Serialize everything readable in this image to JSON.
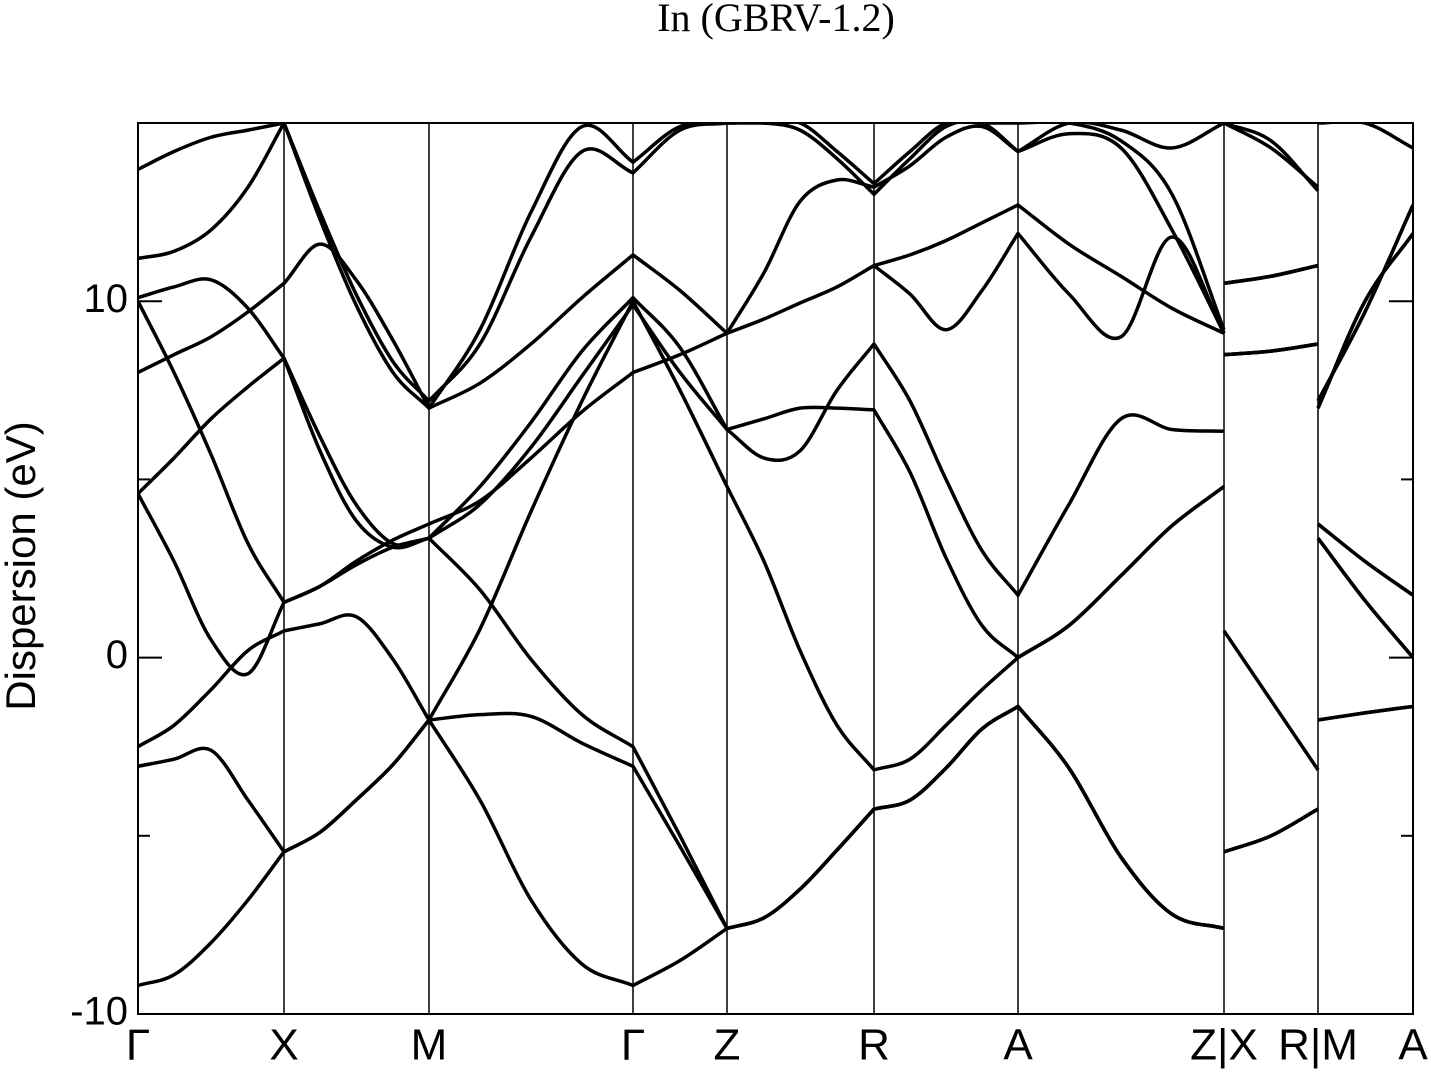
{
  "chart_data": {
    "type": "line",
    "title": "In (GBRV-1.2)",
    "ylabel": "Dispersion (eV)",
    "color": "#000000",
    "xlim": [
      0,
      1275
    ],
    "ylim": [
      -10,
      15
    ],
    "yticks": [
      -10,
      0,
      10
    ],
    "yminorticks": [
      -5,
      5
    ],
    "xticks": [
      {
        "value": 0,
        "label": "Γ"
      },
      {
        "value": 146,
        "label": "X"
      },
      {
        "value": 291,
        "label": "M"
      },
      {
        "value": 495,
        "label": "Γ"
      },
      {
        "value": 589,
        "label": "Z"
      },
      {
        "value": 736,
        "label": "R"
      },
      {
        "value": 880,
        "label": "A"
      },
      {
        "value": 1086,
        "label": "Z|X"
      },
      {
        "value": 1180,
        "label": "R|M"
      },
      {
        "value": 1275,
        "label": "A"
      }
    ],
    "x": [
      0,
      36,
      73,
      110,
      146,
      182,
      218,
      255,
      291,
      342,
      393,
      444,
      495,
      542,
      589,
      626,
      662,
      699,
      736,
      772,
      808,
      844,
      880,
      931,
      983,
      1034,
      1086,
      1086,
      1086,
      1133,
      1180,
      1180,
      1180,
      1227,
      1275
    ],
    "series": [
      {
        "values": [
          -9.2,
          -8.9,
          -8.0,
          -6.8,
          -5.45,
          -4.9,
          -4.0,
          -3.0,
          -1.75,
          -4.0,
          -6.8,
          -8.6,
          -9.2,
          -8.5,
          -7.6,
          -7.3,
          -6.5,
          -5.4,
          -4.25,
          -4.0,
          -3.1,
          -2.0,
          -1.37,
          -3.1,
          -5.6,
          -7.2,
          -7.6,
          null,
          -5.45,
          -5.0,
          -4.25,
          null,
          -1.75,
          -1.55,
          -1.37
        ]
      },
      {
        "values": [
          -3.05,
          -2.85,
          -2.6,
          -4.0,
          -5.45,
          -4.9,
          -4.0,
          -3.0,
          -1.75,
          -1.6,
          -1.65,
          -2.4,
          -3.05,
          -5.3,
          -7.6,
          -7.3,
          -6.5,
          -5.4,
          -4.25,
          -4.0,
          -3.1,
          -2.0,
          -1.37,
          -3.1,
          -5.6,
          -7.2,
          -7.6,
          null,
          -5.45,
          -5.0,
          -4.25,
          null,
          -1.75,
          -1.55,
          -1.37
        ]
      },
      {
        "values": [
          -2.5,
          -1.9,
          -0.9,
          0.2,
          0.75,
          0.95,
          1.15,
          -0.05,
          -1.75,
          0.8,
          4.1,
          7.2,
          10.0,
          7.5,
          4.8,
          2.7,
          0.2,
          -1.9,
          -3.15,
          -2.85,
          -1.9,
          -0.9,
          0,
          0.9,
          2.3,
          3.7,
          4.8,
          null,
          0.75,
          -1.2,
          -3.15,
          null,
          3.35,
          1.6,
          0
        ]
      },
      {
        "values": [
          4.6,
          2.7,
          0.5,
          -0.45,
          1.55,
          2.0,
          2.7,
          3.3,
          3.75,
          4.4,
          5.6,
          6.9,
          8.0,
          8.5,
          9.1,
          9.5,
          9.95,
          10.4,
          11.0,
          11.3,
          11.7,
          12.2,
          12.7,
          11.6,
          10.7,
          9.8,
          9.1,
          null,
          10.5,
          10.7,
          11.0,
          null,
          7.2,
          9.7,
          12.7
        ]
      },
      {
        "values": [
          4.6,
          5.6,
          6.7,
          7.6,
          8.4,
          5.8,
          3.85,
          3.1,
          3.35,
          1.9,
          -0.05,
          -1.6,
          -2.5,
          -5.0,
          -7.6,
          -7.3,
          -6.5,
          -5.4,
          -4.25,
          -4.0,
          -3.1,
          -2.0,
          -1.37,
          -3.1,
          -5.6,
          -7.2,
          -7.6,
          null,
          8.5,
          8.6,
          8.8,
          null,
          3.75,
          2.7,
          1.75
        ]
      },
      {
        "values": [
          8.0,
          8.5,
          9.0,
          9.7,
          10.5,
          11.6,
          10.6,
          8.9,
          7.0,
          7.7,
          8.8,
          10.1,
          11.3,
          10.3,
          9.1,
          10.8,
          12.8,
          13.4,
          13.2,
          13.8,
          14.6,
          14.9,
          14.2,
          14.7,
          14.3,
          12.0,
          9.1,
          null,
          15,
          14.5,
          13.1,
          null,
          7.0,
          10.0,
          11.9
        ]
      },
      {
        "values": [
          10.0,
          8.0,
          5.7,
          3.2,
          1.55,
          2.0,
          2.6,
          3.1,
          3.35,
          4.8,
          6.6,
          8.6,
          10.1,
          8.7,
          6.4,
          5.6,
          5.8,
          7.5,
          8.8,
          7.2,
          5.0,
          3.0,
          1.75,
          4.3,
          6.7,
          6.4,
          6.35,
          null,
          8.5,
          8.6,
          8.8,
          null,
          3.75,
          2.7,
          1.75
        ]
      },
      {
        "values": [
          11.2,
          11.4,
          12.0,
          13.2,
          15,
          12.5,
          10.2,
          8.3,
          7.2,
          8.8,
          11.8,
          14.2,
          13.6,
          14.8,
          15,
          15,
          14.8,
          14.0,
          13.0,
          14.0,
          14.9,
          15,
          14.2,
          15,
          14.8,
          14.3,
          15,
          null,
          15,
          14.3,
          13.2,
          null,
          15,
          15,
          14.3
        ]
      },
      {
        "values": [
          13.7,
          14.2,
          14.6,
          14.8,
          15,
          12.3,
          9.9,
          8.0,
          7.0,
          9.2,
          12.5,
          14.9,
          13.9,
          14.9,
          15,
          15,
          15,
          14.2,
          13.3,
          14.2,
          15,
          15,
          15,
          15,
          14.5,
          13.0,
          9.2,
          null,
          10.5,
          10.7,
          11.0,
          null,
          7.0,
          10.0,
          11.9
        ]
      },
      {
        "values": [
          10.1,
          10.4,
          10.6,
          9.8,
          8.4,
          6.2,
          4.3,
          3.2,
          3.35,
          4.3,
          5.9,
          7.9,
          9.9,
          8.0,
          6.4,
          6.7,
          7.0,
          7.0,
          6.95,
          5.2,
          2.8,
          0.9,
          0,
          0.9,
          2.3,
          3.7,
          4.8,
          null,
          8.5,
          8.6,
          8.8,
          null,
          3.35,
          1.6,
          0
        ]
      },
      {
        "values": [
          null,
          null,
          null,
          null,
          null,
          null,
          null,
          null,
          null,
          null,
          null,
          null,
          null,
          null,
          null,
          null,
          null,
          null,
          11.0,
          10.2,
          9.2,
          10.3,
          11.9,
          10.2,
          9.0,
          11.8,
          9.1,
          null,
          10.5,
          10.7,
          11.0,
          null,
          7.2,
          9.7,
          12.7
        ]
      }
    ]
  }
}
